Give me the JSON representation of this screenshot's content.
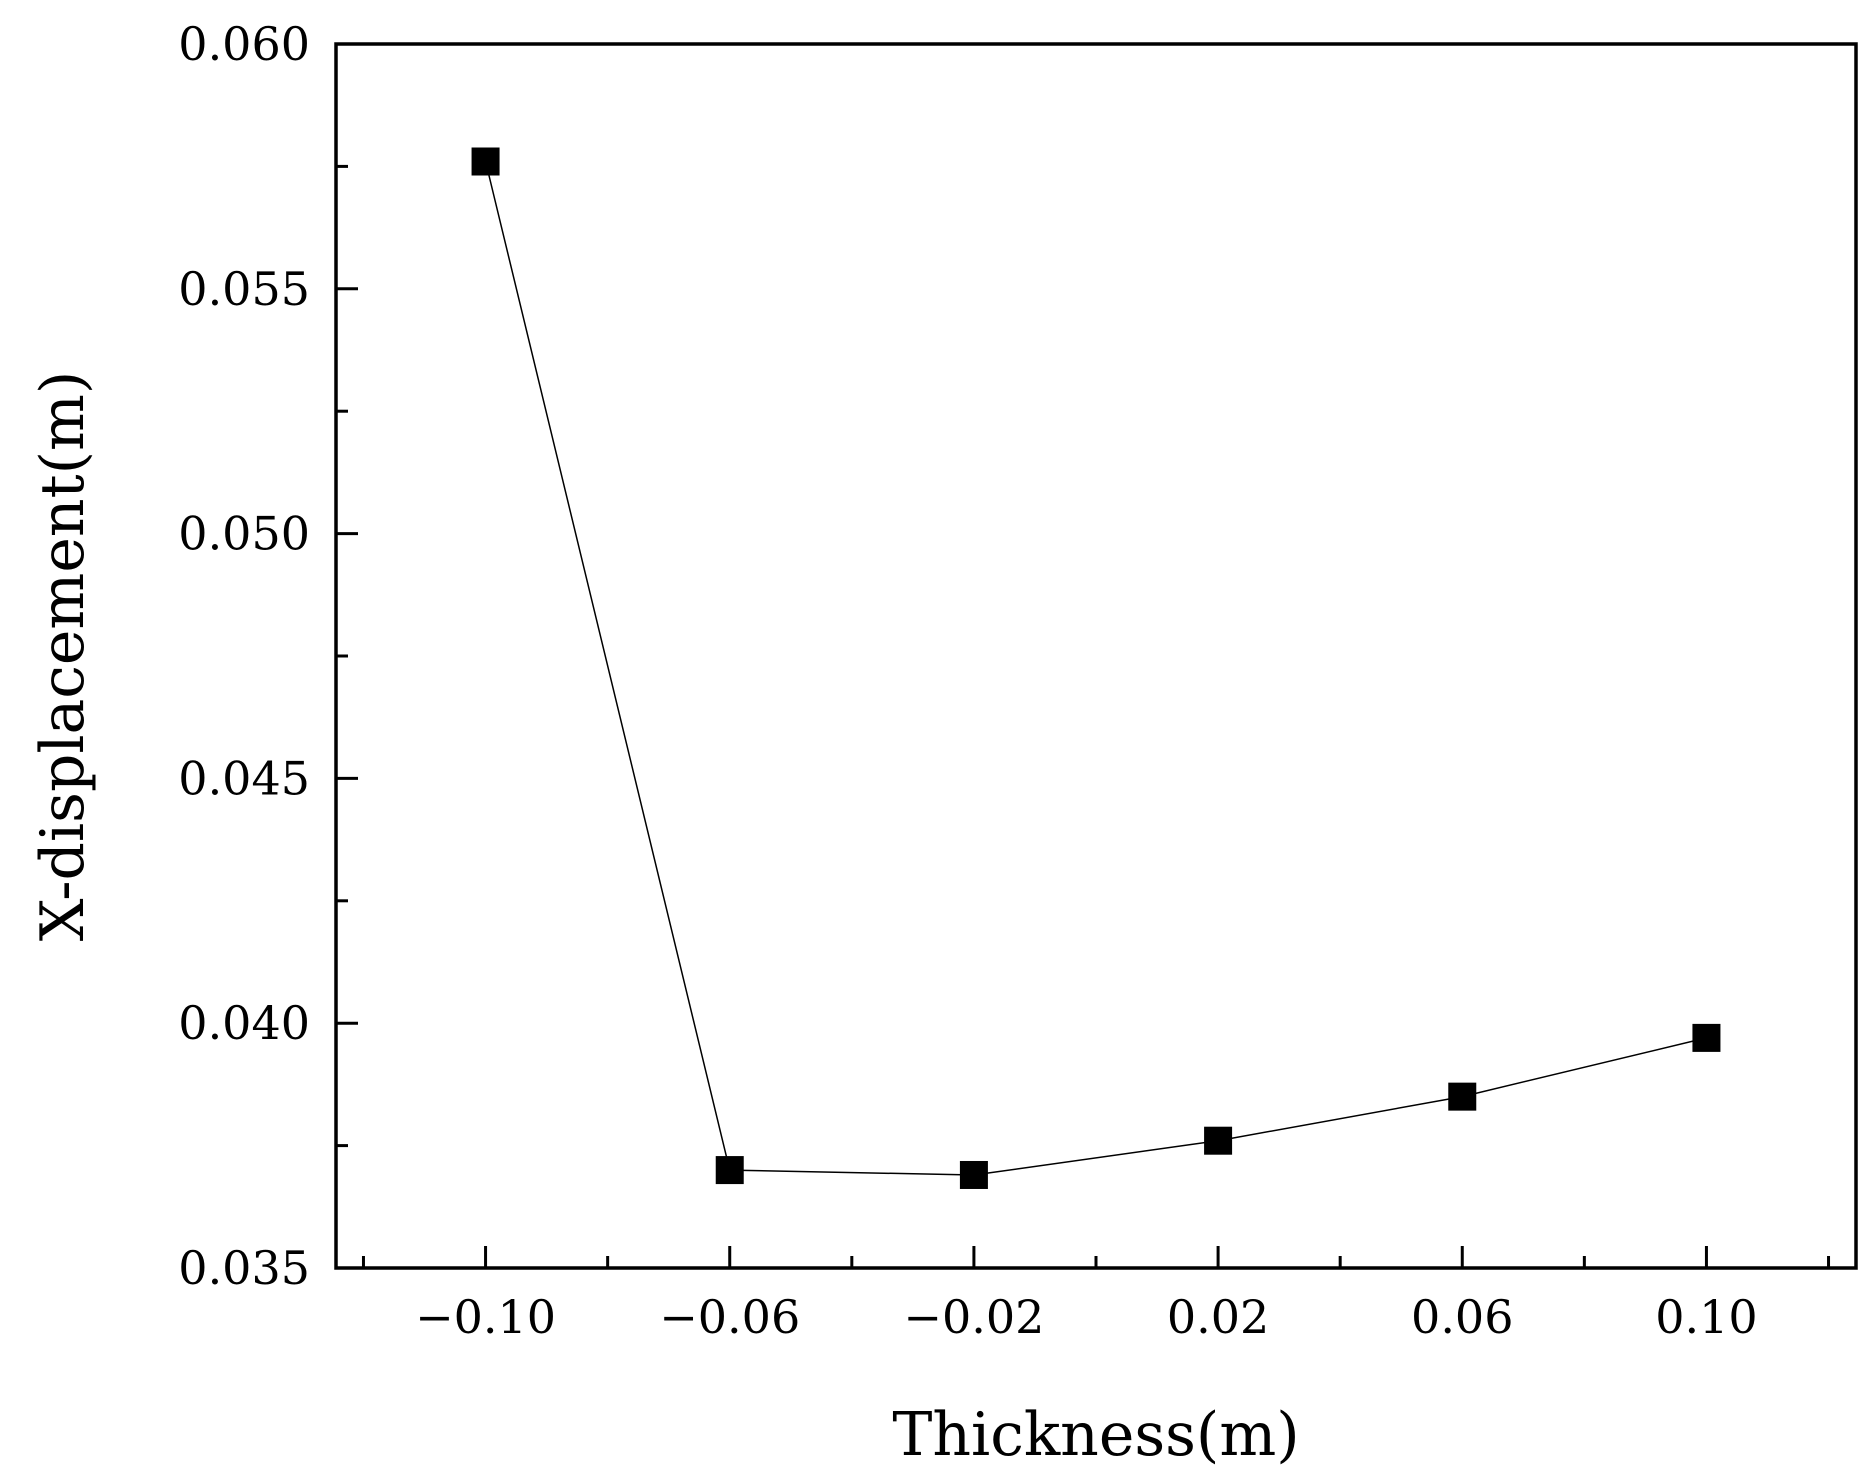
{
  "chart_data": {
    "type": "line",
    "title": "",
    "xlabel": "Thickness(m)",
    "ylabel": "X-displacement(m)",
    "xlim": [
      -0.1245,
      0.1245
    ],
    "ylim": [
      0.035,
      0.06
    ],
    "xticks": [
      -0.1,
      -0.06,
      -0.02,
      0.02,
      0.06,
      0.1
    ],
    "xtick_labels": [
      "−0.10",
      "−0.06",
      "−0.02",
      "0.02",
      "0.06",
      "0.10"
    ],
    "xminor_ticks": [
      -0.12,
      -0.08,
      -0.04,
      0.0,
      0.04,
      0.08,
      0.12
    ],
    "yticks": [
      0.035,
      0.04,
      0.045,
      0.05,
      0.055,
      0.06
    ],
    "ytick_labels": [
      "0.035",
      "0.040",
      "0.045",
      "0.050",
      "0.055",
      "0.060"
    ],
    "yminor_ticks": [
      0.0375,
      0.0425,
      0.0475,
      0.0525,
      0.0575
    ],
    "grid": false,
    "legend": "none",
    "series": [
      {
        "x": [
          -0.1,
          -0.06,
          -0.02,
          0.02,
          0.06,
          0.1
        ],
        "y": [
          0.0576,
          0.037,
          0.0369,
          0.0376,
          0.0385,
          0.0397
        ],
        "marker": "square",
        "color": "#000000"
      }
    ]
  }
}
